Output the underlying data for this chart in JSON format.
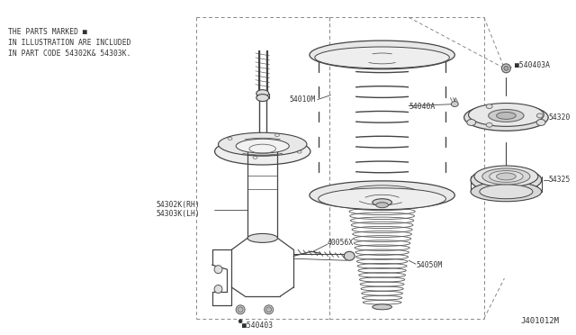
{
  "bg_color": "#ffffff",
  "fig_width": 6.4,
  "fig_height": 3.72,
  "dpi": 100,
  "note_lines": [
    "THE PARTS MARKED ■",
    "IN ILLUSTRATION ARE INCLUDED",
    "IN PART CODE 54302K& 54303K."
  ],
  "footer_text": "J401012M",
  "line_color": "#444444",
  "label_color": "#333333",
  "label_fontsize": 5.8,
  "note_fontsize": 5.5
}
